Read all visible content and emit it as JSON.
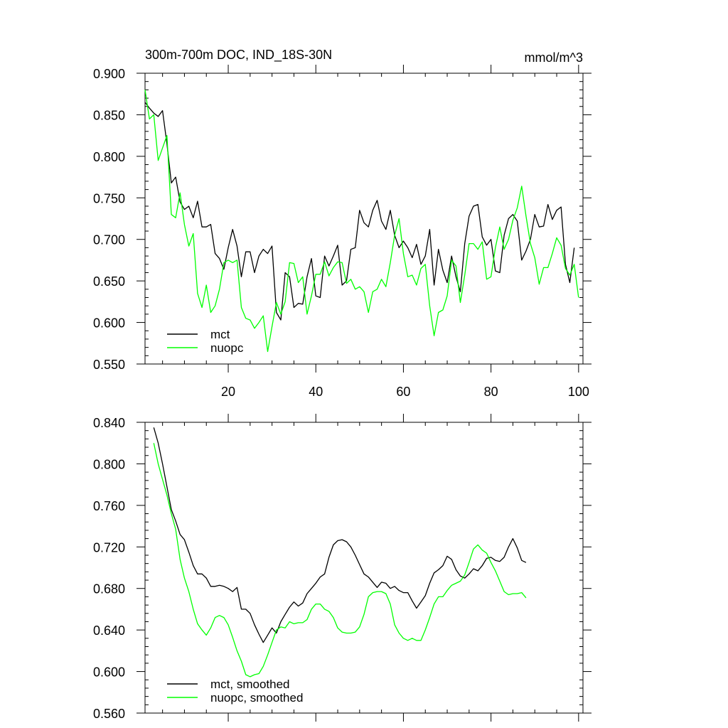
{
  "chart_data": [
    {
      "type": "line",
      "title": "300m-700m DOC, IND_18S-30N",
      "units": "mmol/m^3",
      "xlim": [
        1,
        101
      ],
      "ylim": [
        0.55,
        0.9
      ],
      "yticks": [
        0.55,
        0.6,
        0.65,
        0.7,
        0.75,
        0.8,
        0.85,
        0.9
      ],
      "ytick_labels": [
        "0.550",
        "0.600",
        "0.650",
        "0.700",
        "0.750",
        "0.800",
        "0.850",
        "0.900"
      ],
      "xticks": [
        20,
        40,
        60,
        80,
        100
      ],
      "xtick_labels": [
        "20",
        "40",
        "60",
        "80",
        "100"
      ],
      "legend_position": "bottom-left",
      "series": [
        {
          "name": "mct",
          "color": "#000000",
          "x_start": 1,
          "values": [
            0.865,
            0.858,
            0.852,
            0.848,
            0.855,
            0.815,
            0.768,
            0.775,
            0.745,
            0.736,
            0.74,
            0.726,
            0.746,
            0.715,
            0.715,
            0.718,
            0.683,
            0.677,
            0.664,
            0.69,
            0.712,
            0.692,
            0.655,
            0.685,
            0.685,
            0.66,
            0.68,
            0.688,
            0.683,
            0.692,
            0.612,
            0.603,
            0.66,
            0.655,
            0.618,
            0.623,
            0.622,
            0.655,
            0.677,
            0.632,
            0.63,
            0.68,
            0.668,
            0.68,
            0.693,
            0.645,
            0.65,
            0.688,
            0.69,
            0.735,
            0.72,
            0.715,
            0.735,
            0.747,
            0.722,
            0.712,
            0.735,
            0.705,
            0.69,
            0.698,
            0.69,
            0.678,
            0.694,
            0.67,
            0.68,
            0.712,
            0.645,
            0.688,
            0.663,
            0.648,
            0.68,
            0.655,
            0.637,
            0.695,
            0.728,
            0.74,
            0.742,
            0.703,
            0.693,
            0.7,
            0.662,
            0.66,
            0.705,
            0.725,
            0.73,
            0.722,
            0.675,
            0.686,
            0.7,
            0.73,
            0.715,
            0.716,
            0.742,
            0.724,
            0.735,
            0.739,
            0.67,
            0.648,
            0.69
          ]
        },
        {
          "name": "nuopc",
          "color": "#00ff00",
          "x_start": 1,
          "values": [
            0.88,
            0.845,
            0.85,
            0.795,
            0.81,
            0.825,
            0.73,
            0.726,
            0.756,
            0.718,
            0.692,
            0.707,
            0.635,
            0.618,
            0.645,
            0.612,
            0.62,
            0.64,
            0.672,
            0.675,
            0.672,
            0.675,
            0.618,
            0.605,
            0.603,
            0.593,
            0.6,
            0.608,
            0.565,
            0.595,
            0.624,
            0.61,
            0.625,
            0.672,
            0.671,
            0.648,
            0.655,
            0.61,
            0.632,
            0.658,
            0.658,
            0.673,
            0.656,
            0.666,
            0.673,
            0.672,
            0.647,
            0.652,
            0.64,
            0.643,
            0.637,
            0.612,
            0.637,
            0.64,
            0.652,
            0.643,
            0.672,
            0.705,
            0.725,
            0.683,
            0.655,
            0.657,
            0.645,
            0.665,
            0.67,
            0.62,
            0.584,
            0.612,
            0.615,
            0.632,
            0.675,
            0.668,
            0.624,
            0.657,
            0.695,
            0.695,
            0.688,
            0.697,
            0.652,
            0.655,
            0.69,
            0.715,
            0.688,
            0.7,
            0.723,
            0.738,
            0.764,
            0.728,
            0.695,
            0.678,
            0.646,
            0.666,
            0.666,
            0.683,
            0.702,
            0.693,
            0.665,
            0.657,
            0.67,
            0.63
          ]
        }
      ]
    },
    {
      "type": "line",
      "title": "",
      "xlim": [
        1,
        101
      ],
      "ylim": [
        0.56,
        0.84
      ],
      "yticks": [
        0.56,
        0.6,
        0.64,
        0.68,
        0.72,
        0.76,
        0.8,
        0.84
      ],
      "ytick_labels": [
        "0.560",
        "0.600",
        "0.640",
        "0.680",
        "0.720",
        "0.760",
        "0.800",
        "0.840"
      ],
      "xticks": [
        20,
        40,
        60,
        80,
        100
      ],
      "legend_position": "bottom-left",
      "series": [
        {
          "name": "mct, smoothed",
          "color": "#000000",
          "x_start": 3,
          "values": [
            0.835,
            0.82,
            0.8,
            0.778,
            0.756,
            0.745,
            0.732,
            0.727,
            0.715,
            0.702,
            0.694,
            0.694,
            0.69,
            0.682,
            0.682,
            0.683,
            0.682,
            0.68,
            0.677,
            0.681,
            0.66,
            0.66,
            0.656,
            0.645,
            0.636,
            0.628,
            0.635,
            0.642,
            0.637,
            0.648,
            0.655,
            0.662,
            0.667,
            0.663,
            0.666,
            0.675,
            0.68,
            0.685,
            0.691,
            0.694,
            0.71,
            0.722,
            0.726,
            0.727,
            0.725,
            0.72,
            0.712,
            0.703,
            0.694,
            0.691,
            0.686,
            0.681,
            0.686,
            0.685,
            0.68,
            0.682,
            0.678,
            0.676,
            0.676,
            0.668,
            0.661,
            0.667,
            0.673,
            0.685,
            0.695,
            0.698,
            0.702,
            0.711,
            0.708,
            0.698,
            0.692,
            0.69,
            0.694,
            0.699,
            0.697,
            0.702,
            0.709,
            0.71,
            0.707,
            0.706,
            0.71,
            0.72,
            0.728,
            0.719,
            0.707,
            0.705
          ]
        },
        {
          "name": "nuopc, smoothed",
          "color": "#00ff00",
          "x_start": 3,
          "values": [
            0.82,
            0.8,
            0.785,
            0.77,
            0.752,
            0.737,
            0.708,
            0.69,
            0.677,
            0.66,
            0.646,
            0.64,
            0.635,
            0.642,
            0.652,
            0.654,
            0.652,
            0.645,
            0.633,
            0.62,
            0.61,
            0.597,
            0.595,
            0.597,
            0.598,
            0.605,
            0.616,
            0.628,
            0.64,
            0.643,
            0.642,
            0.648,
            0.646,
            0.647,
            0.647,
            0.65,
            0.66,
            0.665,
            0.665,
            0.66,
            0.658,
            0.652,
            0.642,
            0.638,
            0.637,
            0.637,
            0.638,
            0.643,
            0.655,
            0.672,
            0.676,
            0.677,
            0.677,
            0.675,
            0.665,
            0.645,
            0.637,
            0.632,
            0.63,
            0.632,
            0.63,
            0.63,
            0.64,
            0.652,
            0.665,
            0.672,
            0.672,
            0.678,
            0.683,
            0.685,
            0.687,
            0.693,
            0.705,
            0.718,
            0.722,
            0.717,
            0.714,
            0.705,
            0.697,
            0.687,
            0.677,
            0.674,
            0.675,
            0.675,
            0.676,
            0.671
          ]
        }
      ]
    }
  ]
}
